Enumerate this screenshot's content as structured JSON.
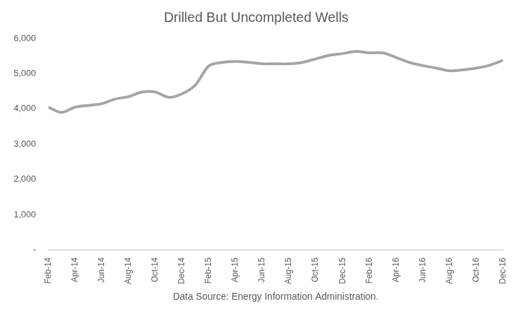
{
  "chart_data": {
    "type": "line",
    "title": "Drilled But Uncompleted Wells",
    "note": "Data Source: Energy Information Administration.",
    "categories": [
      "Feb-14",
      null,
      "Apr-14",
      null,
      "Jun-14",
      null,
      "Aug-14",
      null,
      "Oct-14",
      null,
      "Dec-14",
      null,
      "Feb-15",
      null,
      "Apr-15",
      null,
      "Jun-15",
      null,
      "Aug-15",
      null,
      "Oct-15",
      null,
      "Dec-15",
      null,
      "Feb-16",
      null,
      "Apr-16",
      null,
      "Jun-16",
      null,
      "Aug-16",
      null,
      "Oct-16",
      null,
      "Dec-16"
    ],
    "values": [
      4050,
      3900,
      4050,
      4100,
      4150,
      4280,
      4350,
      4480,
      4480,
      4330,
      4430,
      4680,
      5220,
      5320,
      5350,
      5320,
      5280,
      5280,
      5280,
      5320,
      5420,
      5520,
      5570,
      5630,
      5590,
      5590,
      5460,
      5320,
      5230,
      5160,
      5080,
      5110,
      5160,
      5240,
      5380
    ],
    "color": "#a5a5a5",
    "ylim": [
      0,
      6000
    ],
    "yticks": [
      {
        "value": 0,
        "label": "-"
      },
      {
        "value": 1000,
        "label": "1,000"
      },
      {
        "value": 2000,
        "label": "2,000"
      },
      {
        "value": 3000,
        "label": "3,000"
      },
      {
        "value": 4000,
        "label": "4,000"
      },
      {
        "value": 5000,
        "label": "5,000"
      },
      {
        "value": 6000,
        "label": "6,000"
      }
    ],
    "grid": false
  }
}
